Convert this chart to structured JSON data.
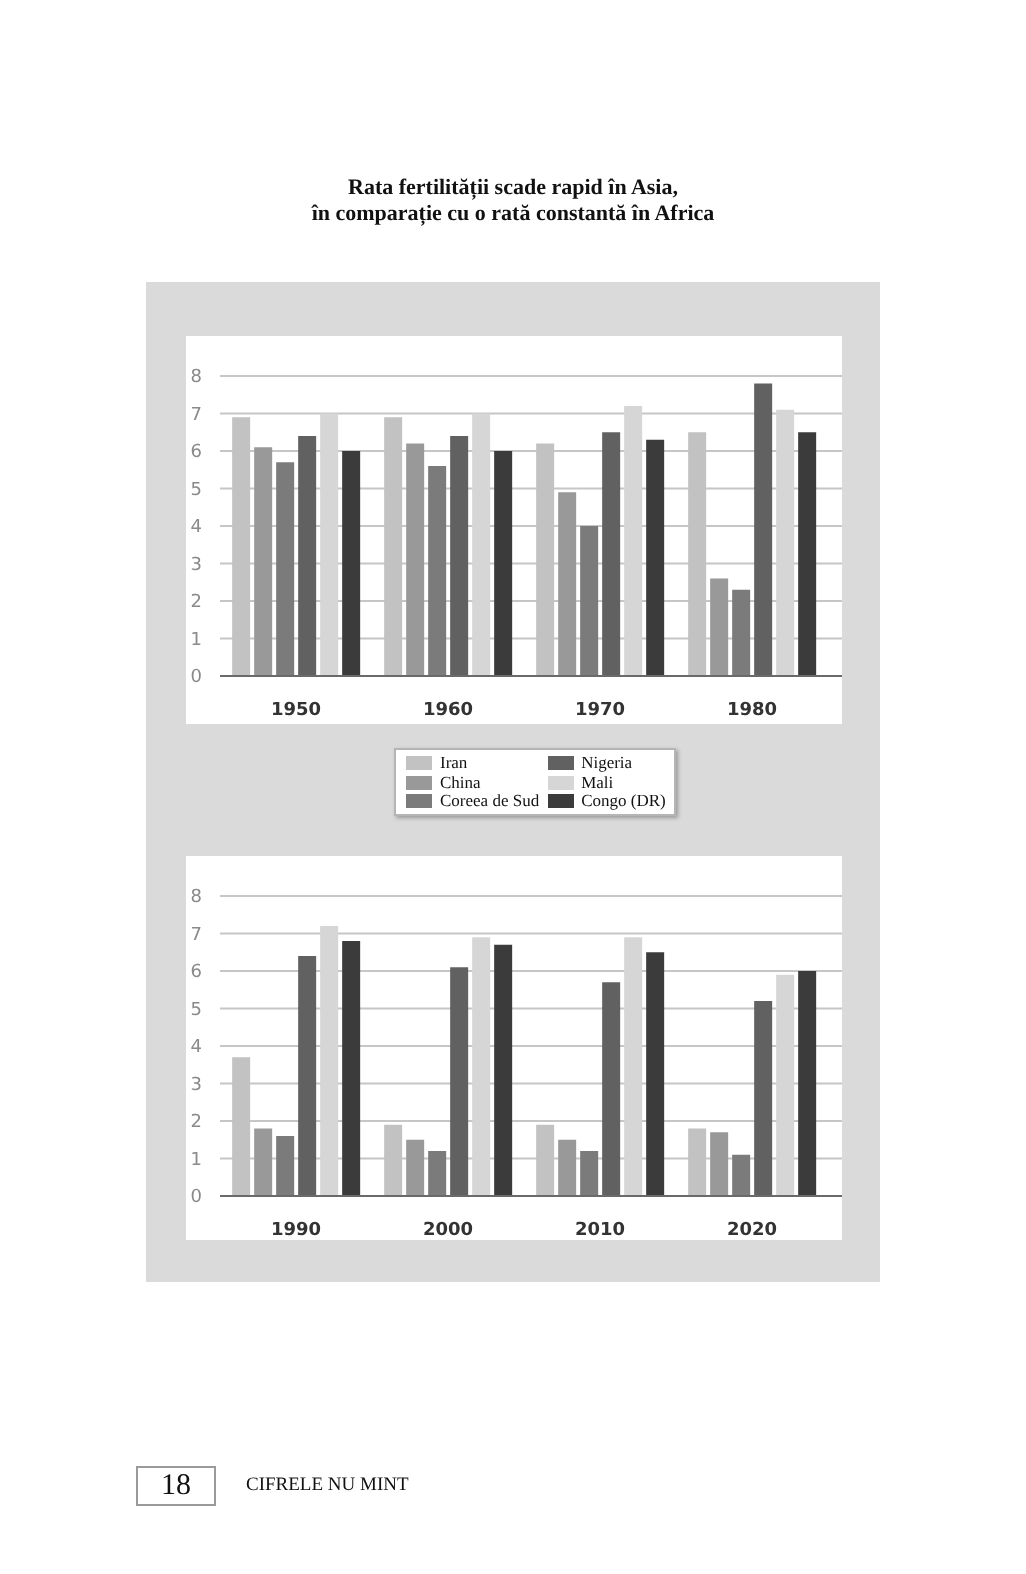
{
  "chart_data": [
    {
      "type": "bar",
      "title": "Rata fertilității scade rapid în Asia,\nîn comparație cu o rată constantă în Africa",
      "categories": [
        "1950",
        "1960",
        "1970",
        "1980"
      ],
      "series": [
        {
          "name": "Iran",
          "color": "#c2c2c2",
          "values": [
            6.9,
            6.9,
            6.2,
            6.5
          ]
        },
        {
          "name": "China",
          "color": "#999999",
          "values": [
            6.1,
            6.2,
            4.9,
            2.6
          ]
        },
        {
          "name": "Coreea de Sud",
          "color": "#7b7b7b",
          "values": [
            5.7,
            5.6,
            4.0,
            2.3
          ]
        },
        {
          "name": "Nigeria",
          "color": "#616161",
          "values": [
            6.4,
            6.4,
            6.5,
            7.8
          ]
        },
        {
          "name": "Mali",
          "color": "#d6d6d6",
          "values": [
            7.0,
            7.0,
            7.2,
            7.1
          ]
        },
        {
          "name": "Congo (DR)",
          "color": "#3b3b3b",
          "values": [
            6.0,
            6.0,
            6.3,
            6.5
          ]
        }
      ],
      "ylim": [
        0,
        8
      ],
      "yticks": [
        0,
        1,
        2,
        3,
        4,
        5,
        6,
        7,
        8
      ],
      "grid": "y",
      "legend": "bottom"
    },
    {
      "type": "bar",
      "categories": [
        "1990",
        "2000",
        "2010",
        "2020"
      ],
      "series": [
        {
          "name": "Iran",
          "color": "#c2c2c2",
          "values": [
            3.7,
            1.9,
            1.9,
            1.8
          ]
        },
        {
          "name": "China",
          "color": "#999999",
          "values": [
            1.8,
            1.5,
            1.5,
            1.7
          ]
        },
        {
          "name": "Coreea de Sud",
          "color": "#7b7b7b",
          "values": [
            1.6,
            1.2,
            1.2,
            1.1
          ]
        },
        {
          "name": "Nigeria",
          "color": "#616161",
          "values": [
            6.4,
            6.1,
            5.7,
            5.2
          ]
        },
        {
          "name": "Mali",
          "color": "#d6d6d6",
          "values": [
            7.2,
            6.9,
            6.9,
            5.9
          ]
        },
        {
          "name": "Congo (DR)",
          "color": "#3b3b3b",
          "values": [
            6.8,
            6.7,
            6.5,
            6.0
          ]
        }
      ],
      "ylim": [
        0,
        8
      ],
      "yticks": [
        0,
        1,
        2,
        3,
        4,
        5,
        6,
        7,
        8
      ],
      "grid": "y",
      "annotations": [
        "18",
        "CIFRELE NU MINT"
      ]
    }
  ]
}
